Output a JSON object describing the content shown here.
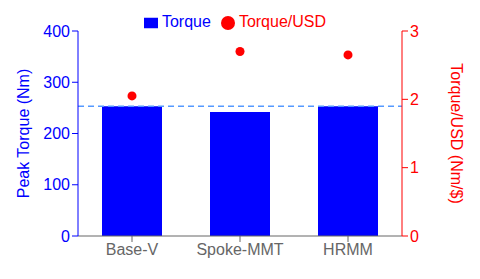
{
  "chart_data": {
    "type": "bar",
    "categories": [
      "Base-V",
      "Spoke-MMT",
      "HRMM"
    ],
    "series": [
      {
        "name": "Torque",
        "type": "bar",
        "color": "#0000ff",
        "values": [
          253,
          242,
          253
        ]
      },
      {
        "name": "Torque/USD",
        "type": "scatter",
        "axis": "y2",
        "color": "#ff0000",
        "marker": "circle",
        "values": [
          2.05,
          2.7,
          2.65
        ]
      }
    ],
    "ylabel": "Peak Torque (Nm)",
    "y2label": "Torque/USD (Nm/$)",
    "ylim": [
      0,
      400
    ],
    "yticks": [
      0,
      100,
      200,
      300,
      400
    ],
    "y2lim": [
      0,
      3
    ],
    "y2ticks": [
      0,
      1,
      2,
      3
    ],
    "reference_lines": [
      {
        "value": 253,
        "color": "#5599ff",
        "line_style": "dashed"
      }
    ],
    "legend": "top",
    "grid": false
  }
}
